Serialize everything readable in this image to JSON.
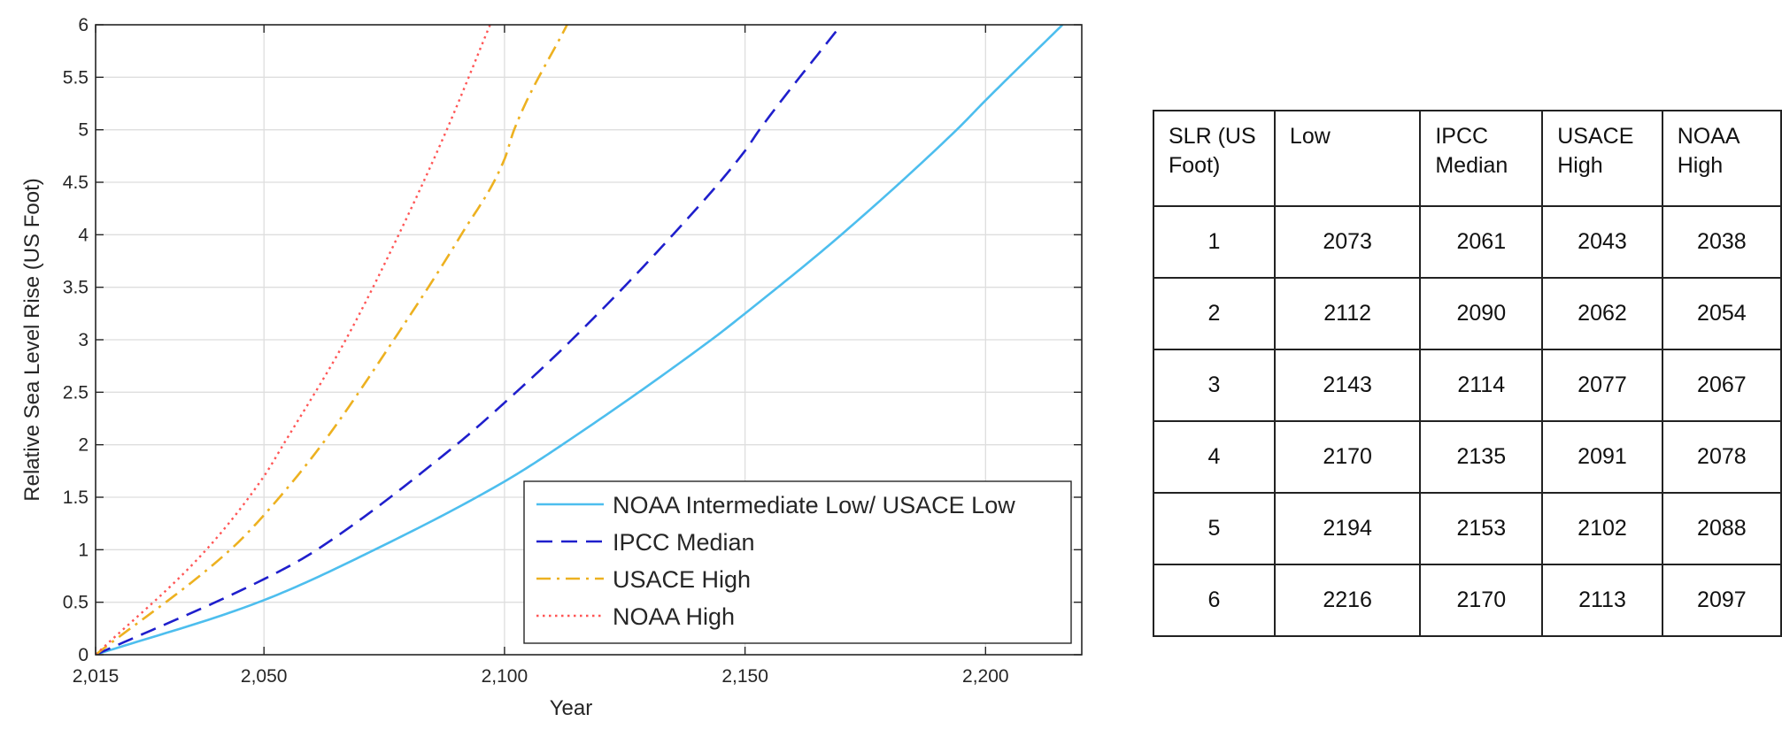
{
  "chart_data": {
    "type": "line",
    "xlabel": "Year",
    "ylabel": "Relative Sea Level Rise (US Foot)",
    "xlim": [
      2015,
      2220
    ],
    "ylim": [
      0,
      6
    ],
    "x_ticks": [
      2015,
      2050,
      2100,
      2150,
      2200
    ],
    "x_tick_labels": [
      "2,015",
      "2,050",
      "2,100",
      "2,150",
      "2,200"
    ],
    "y_ticks": [
      0,
      0.5,
      1,
      1.5,
      2,
      2.5,
      3,
      3.5,
      4,
      4.5,
      5,
      5.5,
      6
    ],
    "y_tick_labels": [
      "0",
      "0.5",
      "1",
      "1.5",
      "2",
      "2.5",
      "3",
      "3.5",
      "4",
      "4.5",
      "5",
      "5.5",
      "6"
    ],
    "grid": true,
    "legend_position": "bottom-right",
    "series": [
      {
        "name": "NOAA Intermediate Low/ USACE Low",
        "color": "#4dbeee",
        "style": "solid",
        "x": [
          2015,
          2050,
          2073,
          2100,
          2112,
          2143,
          2150,
          2170,
          2194,
          2200,
          2216
        ],
        "y": [
          0,
          0.52,
          1,
          1.65,
          2,
          3,
          3.25,
          4,
          5,
          5.28,
          6
        ]
      },
      {
        "name": "IPCC Median",
        "color": "#1f1fcc",
        "style": "dashed",
        "x": [
          2015,
          2050,
          2061,
          2090,
          2100,
          2114,
          2135,
          2150,
          2153,
          2170
        ],
        "y": [
          0,
          0.72,
          1,
          2,
          2.4,
          3,
          4,
          4.8,
          5,
          6
        ]
      },
      {
        "name": "USACE High",
        "color": "#edb120",
        "style": "dashdot",
        "x": [
          2015,
          2043,
          2050,
          2062,
          2077,
          2091,
          2100,
          2102,
          2113
        ],
        "y": [
          0,
          1,
          1.33,
          2,
          3,
          4,
          4.72,
          5,
          6
        ]
      },
      {
        "name": "NOAA High",
        "color": "#ff5555",
        "style": "dotted",
        "x": [
          2015,
          2038,
          2050,
          2054,
          2067,
          2078,
          2088,
          2097
        ],
        "y": [
          0,
          1,
          1.7,
          2,
          3,
          4,
          5,
          6
        ]
      }
    ]
  },
  "table": {
    "headers": [
      [
        "SLR (US",
        "Foot)"
      ],
      [
        "Low"
      ],
      [
        "IPCC",
        "Median"
      ],
      [
        "USACE",
        "High"
      ],
      [
        "NOAA",
        "High"
      ]
    ],
    "rows": [
      [
        "1",
        "2073",
        "2061",
        "2043",
        "2038"
      ],
      [
        "2",
        "2112",
        "2090",
        "2062",
        "2054"
      ],
      [
        "3",
        "2143",
        "2114",
        "2077",
        "2067"
      ],
      [
        "4",
        "2170",
        "2135",
        "2091",
        "2078"
      ],
      [
        "5",
        "2194",
        "2153",
        "2102",
        "2088"
      ],
      [
        "6",
        "2216",
        "2170",
        "2113",
        "2097"
      ]
    ]
  }
}
